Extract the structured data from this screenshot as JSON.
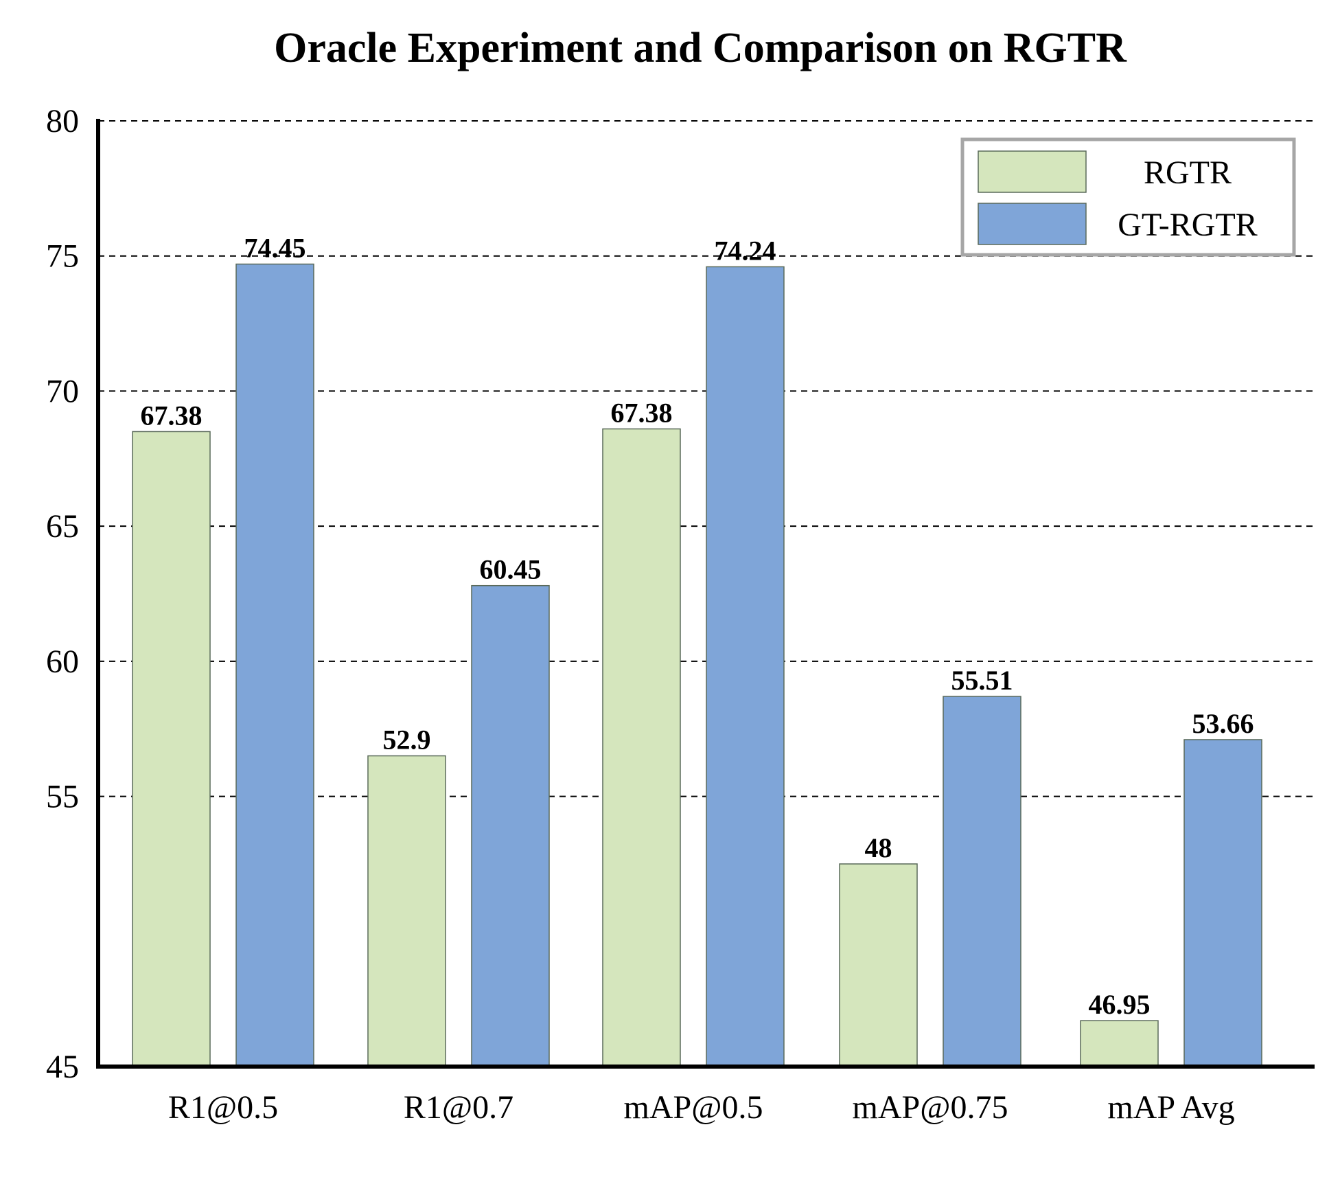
{
  "chart_data": {
    "type": "bar",
    "title": "Oracle Experiment and Comparison on RGTR",
    "xlabel": "",
    "ylabel": "",
    "categories": [
      "R1@0.5",
      "R1@0.7",
      "mAP@0.5",
      "mAP@0.75",
      "mAP Avg"
    ],
    "series": [
      {
        "name": "RGTR",
        "color": "#d5e6bd",
        "values": [
          67.38,
          52.9,
          67.38,
          48,
          46.95
        ],
        "bar_tops": [
          68.5,
          56.5,
          68.6,
          52.5,
          46.7
        ]
      },
      {
        "name": "GT-RGTR",
        "color": "#7fa5d8",
        "values": [
          74.45,
          60.45,
          74.24,
          55.51,
          53.66
        ],
        "bar_tops": [
          74.7,
          62.8,
          74.6,
          58.7,
          57.1
        ]
      }
    ],
    "ylim": [
      45,
      80
    ],
    "yticks": [
      45,
      55,
      60,
      65,
      70,
      75,
      80
    ],
    "grid": true,
    "grid_style": "dashed",
    "legend_position": "top-right"
  }
}
